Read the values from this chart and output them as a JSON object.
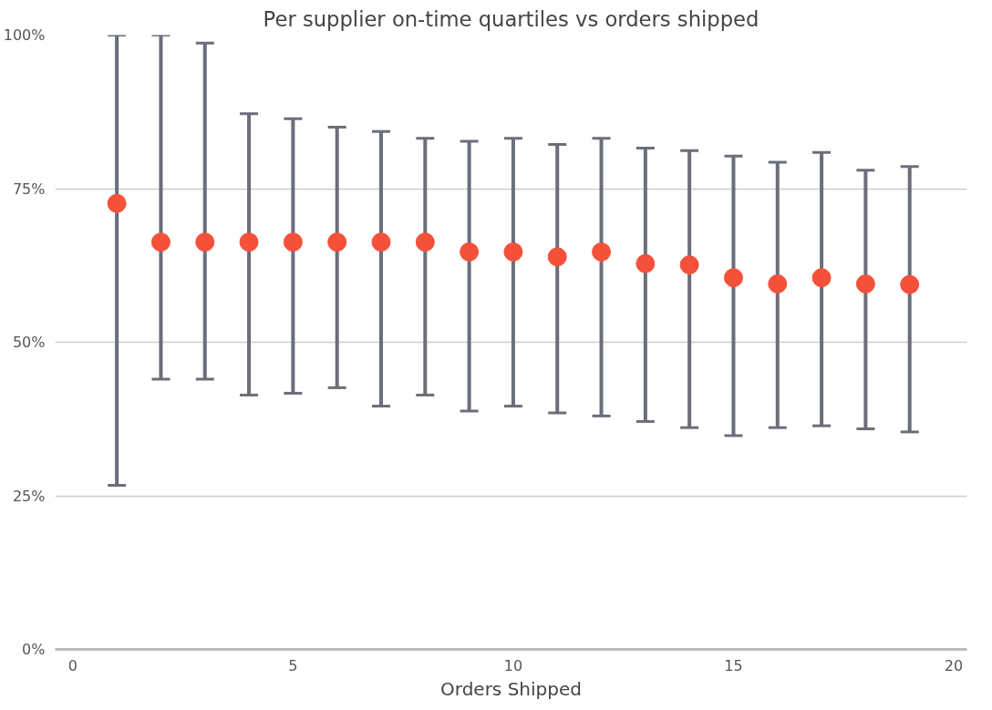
{
  "chart_data": {
    "type": "scatter",
    "title": "Per supplier on-time quartiles vs orders shipped",
    "xlabel": "Orders Shipped",
    "x": [
      1,
      2,
      3,
      4,
      5,
      6,
      7,
      8,
      9,
      10,
      11,
      12,
      13,
      14,
      15,
      16,
      17,
      18,
      19
    ],
    "values": [
      72.6,
      66.3,
      66.3,
      66.3,
      66.3,
      66.3,
      66.3,
      66.3,
      64.7,
      64.7,
      63.9,
      64.7,
      62.8,
      62.6,
      60.5,
      59.5,
      60.5,
      59.5,
      59.4
    ],
    "errors": [
      [
        26.7,
        100
      ],
      [
        44.0,
        100
      ],
      [
        44.0,
        98.7
      ],
      [
        41.4,
        87.2
      ],
      [
        41.7,
        86.4
      ],
      [
        42.6,
        85.0
      ],
      [
        39.6,
        84.3
      ],
      [
        41.4,
        83.2
      ],
      [
        38.8,
        82.7
      ],
      [
        39.6,
        83.2
      ],
      [
        38.5,
        82.2
      ],
      [
        38.0,
        83.2
      ],
      [
        37.1,
        81.6
      ],
      [
        36.1,
        81.2
      ],
      [
        34.8,
        80.3
      ],
      [
        36.1,
        79.3
      ],
      [
        36.4,
        80.9
      ],
      [
        35.9,
        78.0
      ],
      [
        35.4,
        78.6
      ]
    ],
    "color": "#f4503a",
    "marker": "circle",
    "grid": "y",
    "xlim": [
      -0.4,
      20.3
    ],
    "ylim": [
      0,
      100
    ],
    "xticks": [
      0,
      5,
      10,
      15,
      20
    ],
    "yticks": [
      {
        "value": 0,
        "label": "0%"
      },
      {
        "value": 25,
        "label": "25%"
      },
      {
        "value": 50,
        "label": "50%"
      },
      {
        "value": 75,
        "label": "75%"
      },
      {
        "value": 100,
        "label": "100%"
      }
    ]
  }
}
